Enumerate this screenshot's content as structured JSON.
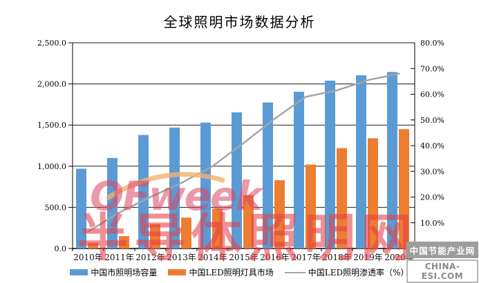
{
  "title": "全球照明市场数据分析",
  "chart_data": {
    "type": "bar",
    "subtype": "combo-bar-line-dual-axis",
    "categories": [
      "2010年",
      "2011年",
      "2012年",
      "2013年",
      "2014年",
      "2015年",
      "2016年",
      "2017年",
      "2018年",
      "2019年",
      "2020年"
    ],
    "series": [
      {
        "name": "中国市照明场容量",
        "type": "bar",
        "axis": "left",
        "color": "#5B9BD5",
        "values": [
          970,
          1100,
          1380,
          1470,
          1530,
          1655,
          1775,
          1905,
          2040,
          2105,
          2145
        ]
      },
      {
        "name": "中国LED照明灯具市场",
        "type": "bar",
        "axis": "left",
        "color": "#ED7D31",
        "values": [
          70,
          150,
          295,
          375,
          485,
          650,
          830,
          1020,
          1220,
          1340,
          1450
        ]
      },
      {
        "name": "中国LED照明渗透率（%）",
        "type": "line",
        "axis": "right",
        "color": "#A5A5A5",
        "values": [
          6.5,
          14,
          20,
          25.5,
          32,
          41,
          50.5,
          59,
          61.5,
          65.5,
          68
        ]
      }
    ],
    "left_axis": {
      "min": 0,
      "max": 2500,
      "tick_step": 500,
      "tick_labels": [
        "0.0",
        "500.0",
        "1,000.0",
        "1,500.0",
        "2,000.0",
        "2,500.0"
      ]
    },
    "right_axis": {
      "min": 0,
      "max": 80,
      "tick_step": 10,
      "tick_labels": [
        "0.0%",
        "10.0%",
        "20.0%",
        "30.0%",
        "40.0%",
        "50.0%",
        "60.0%",
        "70.0%",
        "80.0%"
      ]
    },
    "grid": true,
    "legend_position": "bottom"
  },
  "watermarks": {
    "ofweek": "OFweek",
    "banner": "半导体照明网",
    "badge_line1": "中国节能产业网",
    "badge_line2": "CHINA-ESI.COM"
  }
}
